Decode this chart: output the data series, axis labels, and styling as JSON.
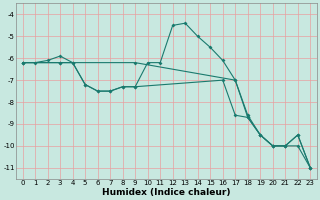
{
  "xlabel": "Humidex (Indice chaleur)",
  "bg_color": "#c8e8e0",
  "grid_color": "#e8a0a0",
  "line_color": "#1a7a6e",
  "xlim": [
    -0.5,
    23.5
  ],
  "ylim": [
    -11.5,
    -3.5
  ],
  "yticks": [
    -4,
    -5,
    -6,
    -7,
    -8,
    -9,
    -10,
    -11
  ],
  "xticks": [
    0,
    1,
    2,
    3,
    4,
    5,
    6,
    7,
    8,
    9,
    10,
    11,
    12,
    13,
    14,
    15,
    16,
    17,
    18,
    19,
    20,
    21,
    22,
    23
  ],
  "line1_x": [
    0,
    1,
    2,
    3,
    4,
    5,
    6,
    7,
    8,
    9,
    10,
    11,
    12,
    13,
    14,
    15,
    16,
    17,
    18,
    19,
    20,
    21,
    22,
    23
  ],
  "line1_y": [
    -6.2,
    -6.2,
    -6.1,
    -5.9,
    -6.2,
    -7.2,
    -7.5,
    -7.5,
    -7.3,
    -7.3,
    -6.2,
    -6.2,
    -4.5,
    -4.4,
    -5.0,
    -5.5,
    -6.1,
    -7.0,
    -8.6,
    -9.5,
    -10.0,
    -10.0,
    -9.5,
    -11.0
  ],
  "line2_x": [
    0,
    3,
    9,
    17,
    18,
    19,
    20,
    21,
    22,
    23
  ],
  "line2_y": [
    -6.2,
    -6.2,
    -6.2,
    -7.0,
    -8.7,
    -9.5,
    -10.0,
    -10.0,
    -10.0,
    -11.0
  ],
  "line3_x": [
    0,
    3,
    4,
    5,
    6,
    7,
    8,
    9,
    16,
    17,
    18,
    19,
    20,
    21,
    22,
    23
  ],
  "line3_y": [
    -6.2,
    -6.2,
    -6.2,
    -7.2,
    -7.5,
    -7.5,
    -7.3,
    -7.3,
    -7.0,
    -8.6,
    -8.7,
    -9.5,
    -10.0,
    -10.0,
    -9.5,
    -11.0
  ],
  "lw": 0.8,
  "ms": 2.0,
  "xlabel_fontsize": 6.5,
  "tick_fontsize": 5.0
}
